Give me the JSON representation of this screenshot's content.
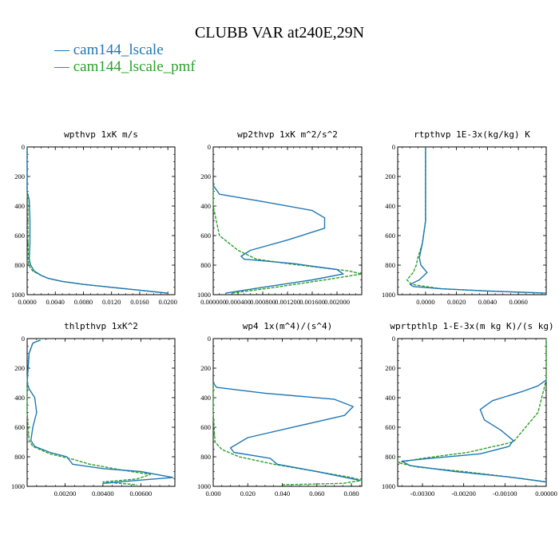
{
  "title": "CLUBB VAR at240E,29N",
  "legend": [
    {
      "label": "— cam144_lscale",
      "color": "#1f77b4"
    },
    {
      "label": "— cam144_lscale_pmf",
      "color": "#2ca02c"
    }
  ],
  "chart_data": [
    {
      "type": "line",
      "title": "wpthvp  1xK m/s",
      "xlim": [
        0,
        0.021
      ],
      "ylim": [
        1000,
        0
      ],
      "xticks": [
        "0.0000",
        "0.0040",
        "0.0080",
        "0.0120",
        "0.0160",
        "0.0200"
      ],
      "xtick_values": [
        0,
        0.004,
        0.008,
        0.012,
        0.016,
        0.02
      ],
      "yticks": [
        "0",
        "200",
        "400",
        "600",
        "800",
        "1000"
      ],
      "ytick_values": [
        0,
        200,
        400,
        600,
        800,
        1000
      ],
      "series": [
        {
          "name": "cam144_lscale",
          "color": "#1f77b4",
          "dashed": false,
          "x": [
            0,
            0,
            0.0003,
            0.0004,
            0.0004,
            0.0003,
            0.0005,
            0.001,
            0.002,
            0.003,
            0.005,
            0.008,
            0.012,
            0.016,
            0.02
          ],
          "y": [
            0,
            300,
            360,
            500,
            650,
            760,
            800,
            840,
            870,
            890,
            910,
            930,
            950,
            970,
            990
          ]
        },
        {
          "name": "cam144_lscale_pmf",
          "color": "#2ca02c",
          "dashed": true,
          "x": [
            0,
            0,
            0.0001,
            0.0001,
            0.0002,
            0.0008,
            0.002,
            0.003,
            0.005,
            0.008,
            0.012,
            0.016,
            0.0198
          ],
          "y": [
            0,
            300,
            400,
            600,
            800,
            840,
            870,
            890,
            910,
            930,
            950,
            970,
            990
          ]
        }
      ]
    },
    {
      "type": "line",
      "title": "wp2thvp  1xK m^2/s^2",
      "xlim": [
        0,
        0.0024
      ],
      "ylim": [
        1000,
        0
      ],
      "xticks": [
        "0.000000",
        "0.000400",
        "0.000800",
        "0.001200",
        "0.001600",
        "0.002000"
      ],
      "xtick_values": [
        0,
        0.0004,
        0.0008,
        0.0012,
        0.0016,
        0.002
      ],
      "yticks": [
        "0",
        "200",
        "400",
        "600",
        "800",
        "1000"
      ],
      "ytick_values": [
        0,
        200,
        400,
        600,
        800,
        1000
      ],
      "series": [
        {
          "name": "cam144_lscale",
          "color": "#1f77b4",
          "dashed": false,
          "x": [
            0,
            0.0001,
            0.0008,
            0.0016,
            0.0018,
            0.0018,
            0.0012,
            0.0006,
            0.00045,
            0.0005,
            0.0013,
            0.002,
            0.0021,
            0.0016,
            0.0008,
            0.0002
          ],
          "y": [
            260,
            320,
            370,
            430,
            480,
            550,
            630,
            700,
            740,
            760,
            790,
            830,
            860,
            900,
            950,
            990
          ]
        },
        {
          "name": "cam144_lscale_pmf",
          "color": "#2ca02c",
          "dashed": true,
          "x": [
            0,
            0,
            0.0001,
            0.0004,
            0.0007,
            0.0012,
            0.0018,
            0.0022,
            0.0024,
            0.0018,
            0.001,
            0.0003
          ],
          "y": [
            260,
            400,
            600,
            700,
            760,
            790,
            820,
            840,
            860,
            900,
            950,
            990
          ]
        }
      ]
    },
    {
      "type": "line",
      "title": "rtpthvp  1E-3x(kg/kg) K",
      "xlim": [
        -0.0018,
        0.0078
      ],
      "ylim": [
        1000,
        0
      ],
      "xticks": [
        "0.0000",
        "0.0020",
        "0.0040",
        "0.0060"
      ],
      "xtick_values": [
        0,
        0.002,
        0.004,
        0.006
      ],
      "yticks": [
        "0",
        "200",
        "400",
        "600",
        "800",
        "1000"
      ],
      "ytick_values": [
        0,
        200,
        400,
        600,
        800,
        1000
      ],
      "series": [
        {
          "name": "cam144_lscale",
          "color": "#1f77b4",
          "dashed": false,
          "x": [
            0,
            0,
            -0.0002,
            -0.0004,
            -0.0003,
            0.0001,
            -0.0004,
            -0.001,
            -0.0008,
            0.001,
            0.004,
            0.0078
          ],
          "y": [
            0,
            500,
            650,
            750,
            800,
            850,
            900,
            930,
            945,
            960,
            975,
            990
          ]
        },
        {
          "name": "cam144_lscale_pmf",
          "color": "#2ca02c",
          "dashed": true,
          "x": [
            0,
            0,
            -0.0002,
            -0.0005,
            -0.0006,
            -0.0008,
            -0.0012,
            -0.0009,
            0.001,
            0.004,
            0.0078
          ],
          "y": [
            0,
            500,
            650,
            750,
            800,
            850,
            900,
            930,
            960,
            975,
            990
          ]
        }
      ]
    },
    {
      "type": "line",
      "title": "thlpthvp  1xK^2",
      "xlim": [
        0,
        0.0078
      ],
      "ylim": [
        1000,
        0
      ],
      "xticks": [
        "0.00200",
        "0.00400",
        "0.00600"
      ],
      "xtick_values": [
        0.002,
        0.004,
        0.006
      ],
      "yticks": [
        "0",
        "200",
        "400",
        "600",
        "800",
        "1000"
      ],
      "ytick_values": [
        0,
        200,
        400,
        600,
        800,
        1000
      ],
      "series": [
        {
          "name": "cam144_lscale",
          "color": "#1f77b4",
          "dashed": false,
          "x": [
            0.0007,
            0.0003,
            0.0001,
            0,
            0.0001,
            0.0004,
            0.0005,
            0.0003,
            0.0002,
            0.0004,
            0.0012,
            0.0021,
            0.0024,
            0.004,
            0.006,
            0.0077,
            0.0058,
            0.004
          ],
          "y": [
            10,
            30,
            100,
            300,
            340,
            400,
            500,
            600,
            690,
            730,
            770,
            800,
            850,
            880,
            900,
            940,
            960,
            980
          ]
        },
        {
          "name": "cam144_lscale_pmf",
          "color": "#2ca02c",
          "dashed": true,
          "x": [
            0.0007,
            0.0003,
            0.0001,
            0,
            0,
            0.0001,
            0.0003,
            0.0012,
            0.0025,
            0.0033,
            0.005,
            0.0065,
            0.0058,
            0.004,
            0.0058
          ],
          "y": [
            10,
            30,
            100,
            300,
            500,
            690,
            730,
            780,
            820,
            850,
            890,
            920,
            950,
            970,
            990
          ]
        }
      ]
    },
    {
      "type": "line",
      "title": "wp4  1x(m^4)/(s^4)",
      "xlim": [
        0,
        0.086
      ],
      "ylim": [
        1000,
        0
      ],
      "xticks": [
        "0.000",
        "0.020",
        "0.040",
        "0.060",
        "0.080"
      ],
      "xtick_values": [
        0,
        0.02,
        0.04,
        0.06,
        0.08
      ],
      "yticks": [
        "0",
        "200",
        "400",
        "600",
        "800",
        "1000"
      ],
      "ytick_values": [
        0,
        200,
        400,
        600,
        800,
        1000
      ],
      "series": [
        {
          "name": "cam144_lscale",
          "color": "#1f77b4",
          "dashed": false,
          "x": [
            0,
            0.002,
            0.03,
            0.07,
            0.081,
            0.076,
            0.05,
            0.02,
            0.01,
            0.012,
            0.033,
            0.037,
            0.06,
            0.085
          ],
          "y": [
            300,
            330,
            370,
            410,
            460,
            520,
            590,
            670,
            740,
            770,
            810,
            850,
            900,
            960
          ]
        },
        {
          "name": "cam144_lscale_pmf",
          "color": "#2ca02c",
          "dashed": true,
          "x": [
            0,
            0,
            0.001,
            0.005,
            0.015,
            0.035,
            0.06,
            0.08,
            0.086,
            0.075,
            0.04
          ],
          "y": [
            300,
            500,
            700,
            750,
            800,
            850,
            900,
            940,
            960,
            980,
            990
          ]
        }
      ]
    },
    {
      "type": "line",
      "title": "wprtpthlp  1-E-3x(m kg K)/(s kg)",
      "xlim": [
        -0.0036,
        0
      ],
      "ylim": [
        1000,
        0
      ],
      "xticks": [
        "-0.00300",
        "-0.00200",
        "-0.00100",
        "0.00000"
      ],
      "xtick_values": [
        -0.003,
        -0.002,
        -0.001,
        0
      ],
      "yticks": [
        "0",
        "200",
        "400",
        "600",
        "800",
        "1000"
      ],
      "ytick_values": [
        0,
        200,
        400,
        600,
        800,
        1000
      ],
      "series": [
        {
          "name": "cam144_lscale",
          "color": "#1f77b4",
          "dashed": false,
          "x": [
            0,
            -0.0002,
            -0.0006,
            -0.0013,
            -0.0016,
            -0.0015,
            -0.0011,
            -0.0008,
            -0.0009,
            -0.0016,
            -0.0028,
            -0.0035,
            -0.0033,
            -0.0022,
            -0.0008,
            0
          ],
          "y": [
            280,
            320,
            360,
            420,
            480,
            550,
            620,
            690,
            730,
            780,
            810,
            830,
            860,
            900,
            940,
            970
          ]
        },
        {
          "name": "cam144_lscale_pmf",
          "color": "#2ca02c",
          "dashed": true,
          "x": [
            0,
            0,
            -0.0002,
            -0.0008,
            -0.0019,
            -0.003,
            -0.0036,
            -0.0031,
            -0.002,
            -0.0008,
            0
          ],
          "y": [
            0,
            280,
            500,
            700,
            770,
            810,
            840,
            870,
            900,
            940,
            970
          ]
        }
      ]
    }
  ]
}
